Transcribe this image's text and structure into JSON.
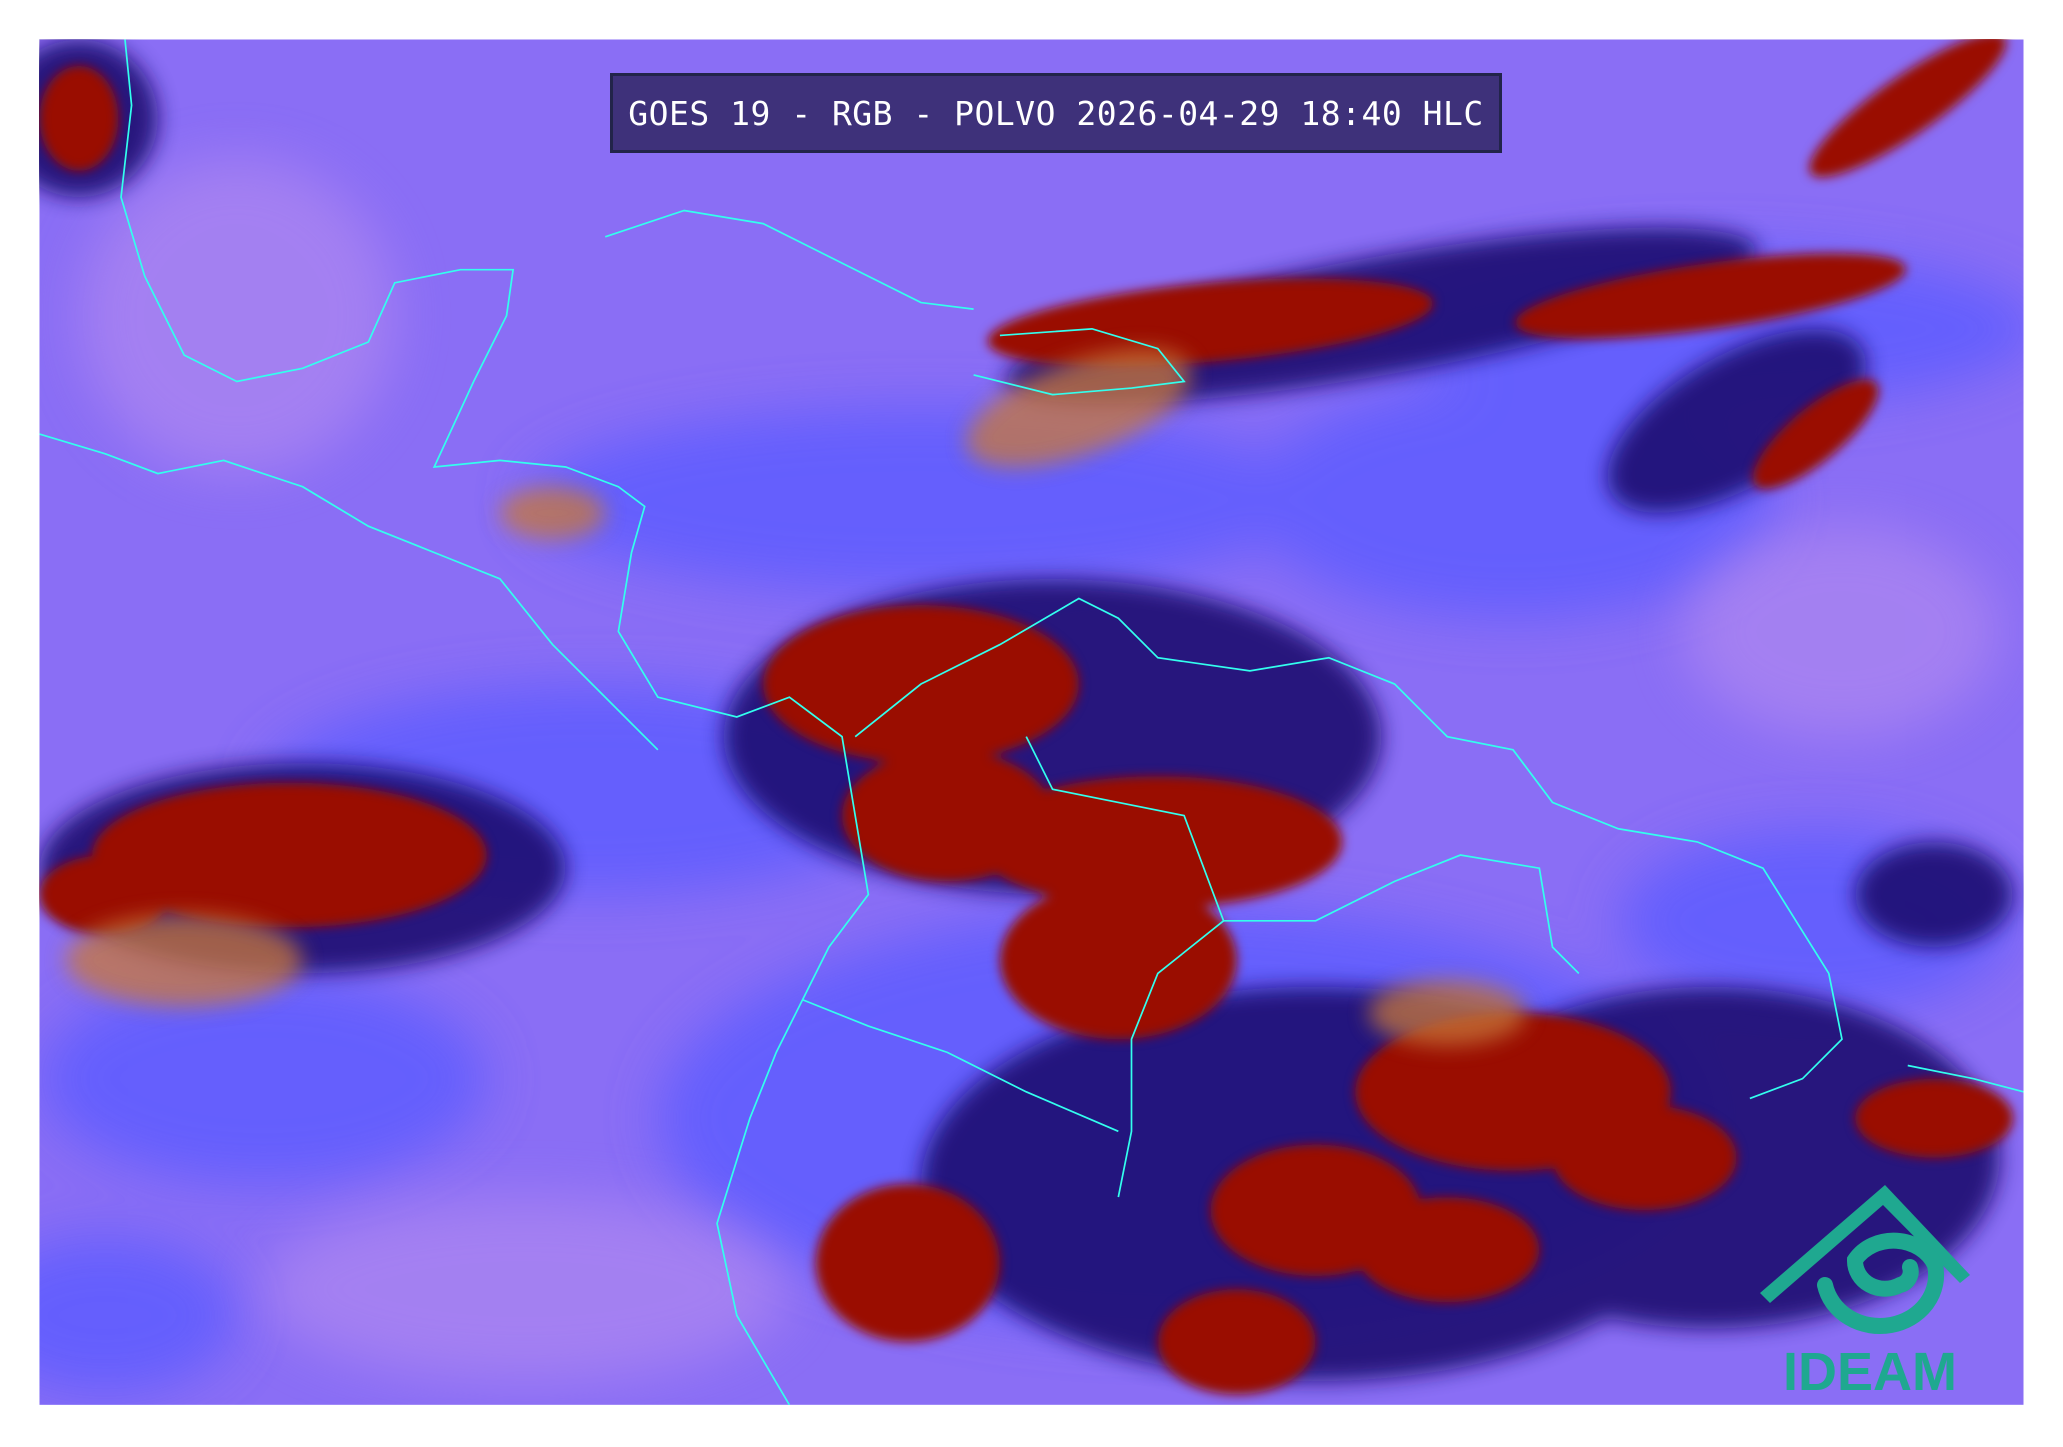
{
  "title": "GOES 19 - RGB - POLVO 2026-04-29 18:40 HLC",
  "logo": {
    "text": "IDEAM",
    "icon": "ideam-spiral-roof-logo",
    "color": "#1fa890"
  },
  "colors": {
    "background_clear": "#8c6cf6",
    "low_cloud": "#5a5cff",
    "deep_convection": "#9a0a00",
    "dust_orange": "#c8783a",
    "coastline": "#33ffee"
  }
}
